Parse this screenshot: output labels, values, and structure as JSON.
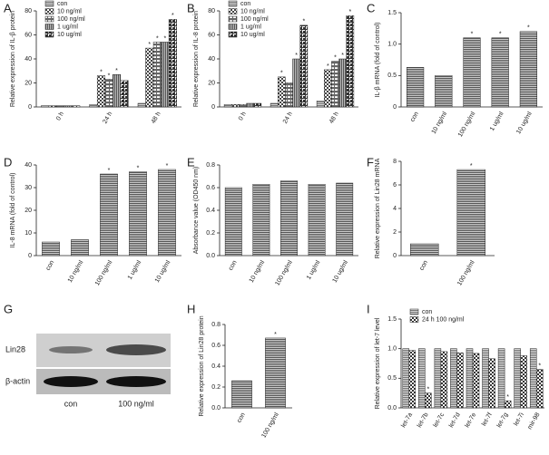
{
  "chart_data": [
    {
      "type": "grouped-bar",
      "panel": "A",
      "ylabel": "Relative expression of IL-β protein",
      "categories": [
        "0 h",
        "24 h",
        "48 h"
      ],
      "ylim": [
        0,
        80
      ],
      "yticks": [
        0,
        20,
        40,
        60,
        80
      ],
      "legend": "upper left",
      "series": [
        {
          "name": "con",
          "color": "#777777",
          "values": [
            1,
            2,
            3
          ],
          "significance": [
            null,
            null,
            null
          ]
        },
        {
          "name": "10 ng/ml",
          "color": "#444444",
          "values": [
            1,
            26,
            49
          ],
          "significance": [
            null,
            "*",
            "*"
          ]
        },
        {
          "name": "100 ng/ml",
          "color": "#666666",
          "values": [
            1,
            23,
            54
          ],
          "significance": [
            null,
            "*",
            "*"
          ]
        },
        {
          "name": "1 ug/ml",
          "color": "#555555",
          "values": [
            1,
            27,
            54
          ],
          "significance": [
            null,
            "*",
            "*"
          ]
        },
        {
          "name": "10 ug/ml",
          "color": "#333333",
          "values": [
            1,
            22,
            73
          ],
          "significance": [
            null,
            null,
            "*"
          ]
        }
      ]
    },
    {
      "type": "grouped-bar",
      "panel": "B",
      "ylabel": "Relative expression of IL-8 protein",
      "categories": [
        "0 h",
        "24 h",
        "48 h"
      ],
      "ylim": [
        0,
        80
      ],
      "yticks": [
        0,
        20,
        40,
        60,
        80
      ],
      "legend": "upper left",
      "series": [
        {
          "name": "con",
          "color": "#777777",
          "values": [
            2,
            3,
            5
          ],
          "significance": [
            null,
            null,
            null
          ]
        },
        {
          "name": "10 ng/ml",
          "color": "#444444",
          "values": [
            2,
            25,
            31
          ],
          "significance": [
            null,
            "*",
            "*"
          ]
        },
        {
          "name": "100 ng/ml",
          "color": "#666666",
          "values": [
            2,
            20,
            38
          ],
          "significance": [
            null,
            null,
            "*"
          ]
        },
        {
          "name": "1 ug/ml",
          "color": "#555555",
          "values": [
            3,
            40,
            40
          ],
          "significance": [
            null,
            "*",
            "*"
          ]
        },
        {
          "name": "10 ug/ml",
          "color": "#333333",
          "values": [
            3,
            68,
            76
          ],
          "significance": [
            null,
            "*",
            "*"
          ]
        }
      ]
    },
    {
      "type": "bar",
      "panel": "C",
      "ylabel": "IL-β mRNA (fold of control)",
      "color": "#555555",
      "categories": [
        "con",
        "10 ng/ml",
        "100 ng/ml",
        "1 ug/ml",
        "10 ug/ml"
      ],
      "values": [
        0.63,
        0.5,
        1.1,
        1.1,
        1.2
      ],
      "significance": [
        null,
        null,
        "*",
        "*",
        "*"
      ],
      "ylim": [
        0,
        1.5
      ],
      "yticks": [
        0,
        0.5,
        {
          "value": 1,
          "label": "1.0"
        },
        1.5
      ]
    },
    {
      "type": "bar",
      "panel": "D",
      "ylabel": "IL-8 mRNA (fold of control)",
      "color": "#555555",
      "categories": [
        "con",
        "10 ng/ml",
        "100 ng/ml",
        "1 ug/ml",
        "10 ug/ml"
      ],
      "values": [
        6,
        7,
        36,
        37,
        38
      ],
      "significance": [
        null,
        null,
        "*",
        "*",
        "*"
      ],
      "ylim": [
        0,
        40
      ],
      "yticks": [
        0,
        10,
        20,
        30,
        40
      ]
    },
    {
      "type": "bar",
      "panel": "E",
      "ylabel": "Absorbance value (OD450 nm)",
      "color": "#555555",
      "categories": [
        "con",
        "10 ng/ml",
        "100 ng/ml",
        "1 ug/ml",
        "10 ug/ml"
      ],
      "values": [
        0.6,
        0.63,
        0.66,
        0.63,
        0.64
      ],
      "ylim": [
        0,
        0.8
      ],
      "yticks": [
        {
          "value": 0,
          "label": "0.0"
        },
        0.2,
        0.4,
        0.6,
        0.8
      ]
    },
    {
      "type": "bar",
      "panel": "F",
      "ylabel": "Relative expression of Lin28 mRNA",
      "color": "#555555",
      "categories": [
        "con",
        "100 ng/ml"
      ],
      "values": [
        1,
        7.3
      ],
      "significance": [
        null,
        "*"
      ],
      "ylim": [
        0,
        8
      ],
      "yticks": [
        0,
        2,
        4,
        6,
        8
      ]
    },
    {
      "type": "blot",
      "panel": "G",
      "rows": [
        "Lin28",
        "β-actin"
      ],
      "categories": [
        "con",
        "100 ng/ml"
      ]
    },
    {
      "type": "bar",
      "panel": "H",
      "ylabel": "Relative expression of Lin28 protein",
      "color": "#555555",
      "categories": [
        "con",
        "100 ng/ml"
      ],
      "values": [
        0.26,
        0.67
      ],
      "significance": [
        null,
        "*"
      ],
      "ylim": [
        0,
        0.8
      ],
      "yticks": [
        {
          "value": 0,
          "label": "0.0"
        },
        0.2,
        0.4,
        0.6,
        0.8
      ]
    },
    {
      "type": "grouped-bar",
      "panel": "I",
      "ylabel": "Relative expression of let-7 level",
      "categories": [
        "let-7a",
        "let-7b",
        "let-7c",
        "let-7d",
        "let-7e",
        "let-7f",
        "let-7g",
        "let-7i",
        "mir-98"
      ],
      "ylim": [
        0,
        1.5
      ],
      "yticks": [
        {
          "value": 0,
          "label": "0.0"
        },
        0.5,
        {
          "value": 1,
          "label": "1.0"
        },
        1.5
      ],
      "legend": "upper left",
      "series": [
        {
          "name": "con",
          "color": "#777777",
          "values": [
            1,
            1,
            1,
            1,
            1,
            1,
            1,
            1,
            1
          ],
          "significance": [
            null,
            null,
            null,
            null,
            null,
            null,
            null,
            null,
            null
          ]
        },
        {
          "name": "24 h 100 ng/ml",
          "color": "#333333",
          "values": [
            0.97,
            0.25,
            0.95,
            0.93,
            0.92,
            0.83,
            0.12,
            0.88,
            0.65
          ],
          "significance": [
            null,
            "*",
            null,
            null,
            null,
            null,
            "*",
            null,
            "*"
          ]
        }
      ]
    }
  ]
}
